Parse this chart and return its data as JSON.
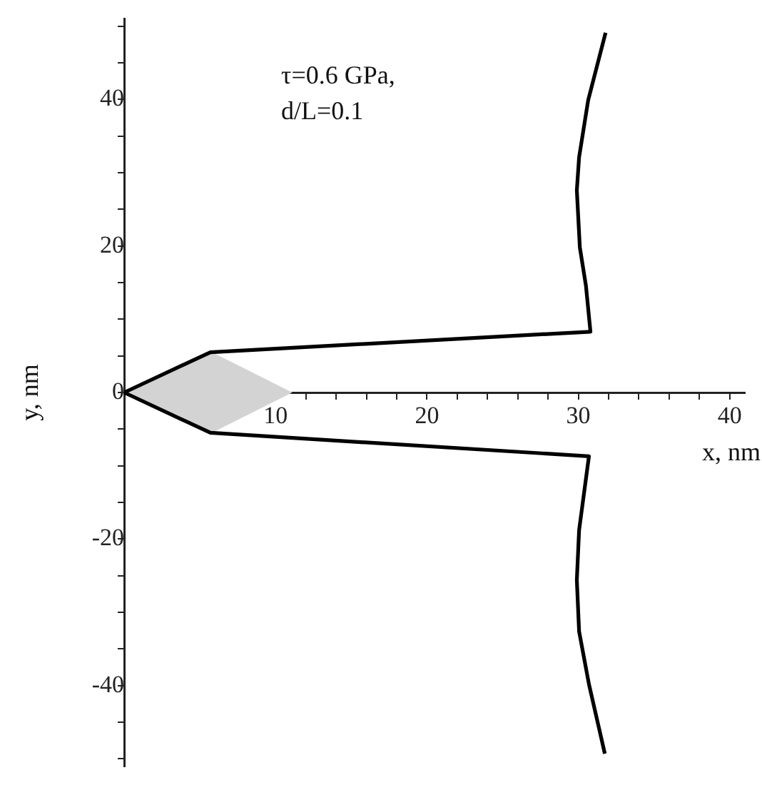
{
  "chart_data": {
    "type": "line",
    "xlabel": "x, nm",
    "ylabel": "y, nm",
    "annotations": [
      "τ=0.6 GPa,",
      "d/L=0.1"
    ],
    "xlim": [
      0,
      41
    ],
    "ylim": [
      -51,
      51
    ],
    "xticks": [
      {
        "value": 2,
        "label": null
      },
      {
        "value": 4,
        "label": null
      },
      {
        "value": 6,
        "label": null
      },
      {
        "value": 8,
        "label": null
      },
      10,
      {
        "value": 12,
        "label": null
      },
      {
        "value": 14,
        "label": null
      },
      {
        "value": 16,
        "label": null
      },
      {
        "value": 18,
        "label": null
      },
      20,
      {
        "value": 22,
        "label": null
      },
      {
        "value": 24,
        "label": null
      },
      {
        "value": 26,
        "label": null
      },
      {
        "value": 28,
        "label": null
      },
      30,
      {
        "value": 32,
        "label": null
      },
      {
        "value": 34,
        "label": null
      },
      {
        "value": 36,
        "label": null
      },
      {
        "value": 38,
        "label": null
      },
      40
    ],
    "yticks": [
      {
        "value": -50,
        "label": null
      },
      {
        "value": -45,
        "label": null
      },
      -40,
      {
        "value": -35,
        "label": null
      },
      {
        "value": -30,
        "label": null
      },
      {
        "value": -25,
        "label": null
      },
      -20,
      {
        "value": -15,
        "label": null
      },
      {
        "value": -10,
        "label": null
      },
      {
        "value": -5,
        "label": null
      },
      0,
      {
        "value": 5,
        "label": null
      },
      {
        "value": 10,
        "label": null
      },
      {
        "value": 15,
        "label": null
      },
      20,
      {
        "value": 25,
        "label": null
      },
      {
        "value": 30,
        "label": null
      },
      {
        "value": 35,
        "label": null
      },
      40,
      {
        "value": 45,
        "label": null
      },
      {
        "value": 50,
        "label": null
      }
    ],
    "grid": false,
    "legend": false,
    "marker": "none",
    "line_style": "solid",
    "series": [
      {
        "type": "area",
        "color": "#d3d3d3",
        "x": [
          0,
          5.7,
          11,
          5.7,
          0
        ],
        "values": [
          0,
          5.5,
          0,
          -5.5,
          0
        ]
      },
      {
        "type": "line",
        "color": "#000000",
        "x": [
          31.8,
          30.65,
          30.05,
          29.9,
          30.1,
          30.5,
          30.8,
          5.7,
          0,
          5.7,
          30.7,
          30.05,
          29.9,
          30.05,
          30.7,
          31.75
        ],
        "values": [
          49.1,
          39.9,
          32.1,
          27.6,
          19.8,
          14.6,
          8.3,
          5.5,
          0,
          -5.5,
          -8.7,
          -18.8,
          -25.6,
          -32.6,
          -39.8,
          -49.3
        ]
      }
    ]
  }
}
